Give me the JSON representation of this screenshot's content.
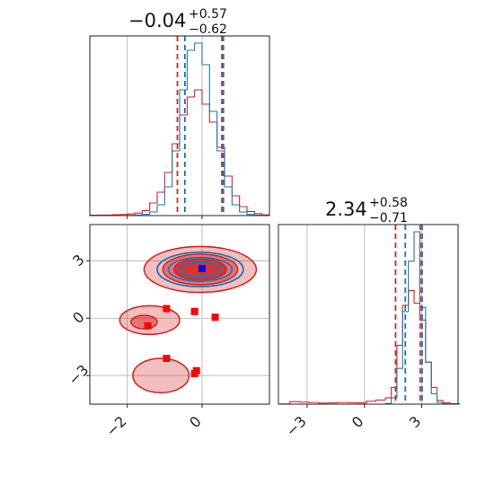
{
  "chart_data": {
    "type": "corner",
    "parameters": [
      "param_a",
      "param_b"
    ],
    "titles": [
      {
        "median": "−0.04",
        "upper": "+0.57",
        "lower": "−0.62"
      },
      {
        "median": "2.34",
        "upper": "+0.58",
        "lower": "−0.71"
      }
    ],
    "colors": {
      "red": "#d62728",
      "blue": "#1f77b4",
      "marker_blue": "#0000ff",
      "marker_red": "#ff0000"
    },
    "ranges": {
      "param_a": [
        -3,
        1.8
      ],
      "param_b": [
        -4.5,
        4.9
      ]
    },
    "ticks": {
      "param_a": {
        "values": [
          -2,
          0
        ],
        "labels": [
          "−2",
          "0"
        ]
      },
      "param_b": {
        "values": [
          -3,
          0,
          3
        ],
        "labels": [
          "−3",
          "0",
          "3"
        ]
      }
    },
    "grid": true,
    "marginal_a": {
      "x": [
        -3.0,
        -2.8,
        -2.6,
        -2.4,
        -2.2,
        -2.0,
        -1.8,
        -1.6,
        -1.4,
        -1.2,
        -1.0,
        -0.8,
        -0.6,
        -0.4,
        -0.2,
        0.0,
        0.2,
        0.4,
        0.6,
        0.8,
        1.0,
        1.2,
        1.4,
        1.6
      ],
      "series": [
        {
          "name": "red",
          "values": [
            0.2,
            0.3,
            0.3,
            0.5,
            0.6,
            0.9,
            1.4,
            2.8,
            7.0,
            13,
            24,
            40,
            56,
            66,
            70,
            62,
            52,
            38,
            22,
            11,
            5,
            2.2,
            1.1,
            0.4
          ]
        },
        {
          "name": "blue",
          "values": [
            0,
            0,
            0,
            0,
            0,
            0.1,
            0.3,
            0.7,
            2,
            6,
            16,
            36,
            70,
            92,
            96,
            84,
            58,
            36,
            16,
            6,
            2,
            0.6,
            0.2,
            0
          ]
        }
      ],
      "quantiles": {
        "red": [
          -0.66,
          0.53
        ],
        "blue": [
          -0.46,
          0.57
        ]
      }
    },
    "marginal_b": {
      "x": [
        -4.4,
        -3.9,
        -3.4,
        -2.9,
        -2.4,
        -1.9,
        -1.4,
        -0.9,
        -0.4,
        0.1,
        0.6,
        1.1,
        1.4,
        1.7,
        2.0,
        2.3,
        2.6,
        2.9,
        3.2,
        3.5,
        3.8,
        4.1,
        4.5
      ],
      "series": [
        {
          "name": "red",
          "values": [
            0.1,
            1.2,
            1.0,
            0.8,
            0.5,
            0.6,
            0.8,
            0.7,
            0.6,
            1.4,
            2.0,
            3.0,
            8,
            28,
            47,
            54,
            48,
            40,
            20,
            8,
            1.8,
            0.6,
            0.2
          ]
        },
        {
          "name": "blue",
          "values": [
            0,
            0,
            0,
            0,
            0,
            0,
            0,
            0,
            0,
            0,
            0,
            0.3,
            3,
            17,
            44,
            68,
            82,
            46,
            20,
            5,
            0.8,
            0.1,
            0
          ]
        }
      ],
      "quantiles": {
        "red": [
          1.63,
          2.92
        ],
        "blue": [
          2.14,
          3.02
        ]
      }
    },
    "joint": {
      "red_contours": [
        {
          "cx": -0.05,
          "cy": 2.55,
          "rx": 1.5,
          "ry": 1.2,
          "level": "outer"
        },
        {
          "cx": -0.05,
          "cy": 2.55,
          "rx": 1.0,
          "ry": 0.8,
          "level": "mid"
        },
        {
          "cx": -0.05,
          "cy": 2.55,
          "rx": 0.7,
          "ry": 0.55,
          "level": "inner"
        },
        {
          "cx": -1.4,
          "cy": -0.1,
          "rx": 0.8,
          "ry": 0.75,
          "level": "outer"
        },
        {
          "cx": -1.1,
          "cy": -3.0,
          "rx": 0.75,
          "ry": 0.9,
          "level": "outer"
        },
        {
          "cx": -1.55,
          "cy": -0.2,
          "rx": 0.35,
          "ry": 0.35,
          "level": "mid"
        }
      ],
      "blue_contours": [
        {
          "cx": -0.05,
          "cy": 2.55,
          "rx": 1.15,
          "ry": 0.9
        },
        {
          "cx": -0.05,
          "cy": 2.55,
          "rx": 0.85,
          "ry": 0.62
        },
        {
          "cx": -0.05,
          "cy": 2.55,
          "rx": 0.55,
          "ry": 0.38
        }
      ],
      "blue_marker": {
        "x": 0.0,
        "y": 2.6
      },
      "red_markers": [
        {
          "x": -0.95,
          "y": 0.5
        },
        {
          "x": -0.2,
          "y": 0.35
        },
        {
          "x": 0.35,
          "y": 0.05
        },
        {
          "x": -1.45,
          "y": -0.4
        },
        {
          "x": -0.95,
          "y": -2.1
        },
        {
          "x": -0.2,
          "y": -2.9
        },
        {
          "x": -0.15,
          "y": -2.75
        }
      ]
    }
  }
}
